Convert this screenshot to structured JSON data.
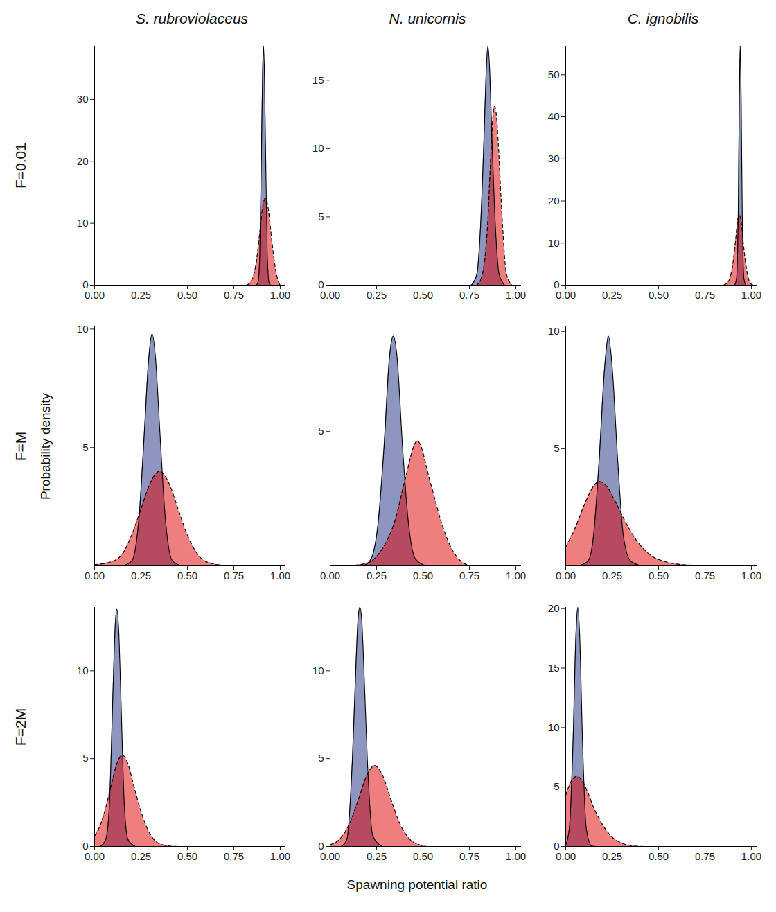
{
  "chart_data": {
    "type": "area",
    "columns": [
      "S. rubroviolaceus",
      "N. unicornis",
      "C. ignobilis"
    ],
    "rows": [
      "F=0.01",
      "F=M",
      "F=2M"
    ],
    "xlabel": "Spawning potential ratio",
    "ylabel": "Probability density",
    "xlim": [
      0,
      1.03
    ],
    "xticks": [
      {
        "value": 0,
        "label": "0.00"
      },
      {
        "value": 0.25,
        "label": "0.25"
      },
      {
        "value": 0.5,
        "label": "0.50"
      },
      {
        "value": 0.75,
        "label": "0.75"
      },
      {
        "value": 1,
        "label": "1.00"
      }
    ],
    "panels": [
      {
        "ylim": [
          0,
          38.6
        ],
        "yticks": [
          0,
          10,
          20,
          30
        ],
        "series": [
          {
            "color": "#1a2e80",
            "line_style": "solid",
            "x": [
              0.87,
              0.88,
              0.89,
              0.9,
              0.905,
              0.91,
              0.915,
              0.92,
              0.93,
              0.94,
              0.95
            ],
            "values": [
              0,
              0.4,
              5,
              24,
              34,
              38.6,
              34,
              24,
              5,
              0.4,
              0
            ]
          },
          {
            "color": "#e00000",
            "line_style": "dashed",
            "x": [
              0.82,
              0.85,
              0.87,
              0.89,
              0.905,
              0.92,
              0.935,
              0.95,
              0.97,
              0.99,
              1.0
            ],
            "values": [
              0,
              1,
              3.5,
              8.5,
              12.5,
              14,
              12.5,
              8.5,
              3.5,
              0.6,
              0
            ]
          }
        ]
      },
      {
        "ylim": [
          0,
          17.5
        ],
        "yticks": [
          0,
          5,
          10,
          15
        ],
        "series": [
          {
            "color": "#1a2e80",
            "line_style": "solid",
            "x": [
              0.76,
              0.79,
              0.81,
              0.83,
              0.84,
              0.85,
              0.86,
              0.87,
              0.89,
              0.91,
              0.94
            ],
            "values": [
              0,
              0.8,
              4.3,
              11.3,
              15.5,
              17.5,
              15.5,
              11.3,
              4.3,
              0.8,
              0
            ]
          },
          {
            "color": "#e00000",
            "line_style": "dashed",
            "x": [
              0.79,
              0.82,
              0.85,
              0.865,
              0.875,
              0.885,
              0.895,
              0.905,
              0.92,
              0.95,
              0.98
            ],
            "values": [
              0,
              0.8,
              4.9,
              9.4,
              12,
              13.1,
              12.5,
              10.5,
              6.5,
              0.8,
              0
            ]
          }
        ]
      },
      {
        "ylim": [
          0,
          56.8
        ],
        "yticks": [
          0,
          10,
          20,
          30,
          40,
          50
        ],
        "series": [
          {
            "color": "#1a2e80",
            "line_style": "solid",
            "x": [
              0.91,
              0.92,
              0.93,
              0.935,
              0.94,
              0.945,
              0.95,
              0.96,
              0.97
            ],
            "values": [
              0,
              1.5,
              20,
              44,
              56.8,
              44,
              20,
              1.5,
              0
            ]
          },
          {
            "color": "#e00000",
            "line_style": "dashed",
            "x": [
              0.85,
              0.88,
              0.9,
              0.915,
              0.925,
              0.935,
              0.945,
              0.955,
              0.97,
              0.99,
              1.01
            ],
            "values": [
              0,
              1.2,
              5,
              10.6,
              15,
              16.7,
              15,
              10.6,
              5,
              0.8,
              0
            ]
          }
        ]
      },
      {
        "ylim": [
          0,
          10.1
        ],
        "yticks": [
          5,
          10
        ],
        "series": [
          {
            "color": "#1a2e80",
            "line_style": "solid",
            "x": [
              0.15,
              0.2,
              0.24,
              0.27,
              0.29,
              0.31,
              0.33,
              0.35,
              0.38,
              0.42,
              0.47
            ],
            "values": [
              0,
              0.2,
              2.1,
              5.9,
              8.6,
              9.8,
              8.6,
              5.9,
              2.1,
              0.2,
              0
            ]
          },
          {
            "color": "#e00000",
            "line_style": "dashed",
            "x": [
              0,
              0.1,
              0.15,
              0.2,
              0.25,
              0.3,
              0.35,
              0.4,
              0.45,
              0.5,
              0.55,
              0.6,
              0.7,
              0.8
            ],
            "values": [
              0.05,
              0.2,
              0.5,
              1.3,
              2.4,
              3.5,
              4.0,
              3.5,
              2.4,
              1.3,
              0.55,
              0.18,
              0.02,
              0
            ]
          }
        ]
      },
      {
        "ylim": [
          0,
          8.9
        ],
        "yticks": [
          5
        ],
        "series": [
          {
            "color": "#1a2e80",
            "line_style": "solid",
            "x": [
              0.18,
              0.22,
              0.26,
              0.29,
              0.32,
              0.34,
              0.36,
              0.39,
              0.42,
              0.46,
              0.52
            ],
            "values": [
              0,
              0.25,
              1.7,
              4.4,
              7.8,
              8.55,
              7.8,
              4.4,
              1.7,
              0.25,
              0
            ]
          },
          {
            "color": "#e00000",
            "line_style": "dashed",
            "x": [
              0.1,
              0.2,
              0.25,
              0.3,
              0.35,
              0.4,
              0.47,
              0.54,
              0.6,
              0.65,
              0.7,
              0.76
            ],
            "values": [
              0,
              0.1,
              0.35,
              0.86,
              1.7,
              3.1,
              4.65,
              3.1,
              1.6,
              0.7,
              0.2,
              0
            ]
          }
        ]
      },
      {
        "ylim": [
          0,
          10.2
        ],
        "yticks": [
          5,
          10
        ],
        "series": [
          {
            "color": "#1a2e80",
            "line_style": "solid",
            "x": [
              0.07,
              0.12,
              0.15,
              0.18,
              0.21,
              0.23,
              0.25,
              0.28,
              0.31,
              0.35,
              0.41
            ],
            "values": [
              0,
              0.2,
              1.3,
              4.5,
              8.5,
              9.8,
              8.5,
              4.5,
              1.3,
              0.2,
              0
            ]
          },
          {
            "color": "#e00000",
            "line_style": "dashed",
            "x": [
              0,
              0.05,
              0.1,
              0.15,
              0.18,
              0.22,
              0.27,
              0.32,
              0.38,
              0.45,
              0.55,
              0.65,
              0.8,
              1.0
            ],
            "values": [
              0.8,
              1.6,
              2.6,
              3.4,
              3.6,
              3.4,
              2.7,
              1.9,
              1.1,
              0.5,
              0.15,
              0.04,
              0.01,
              0
            ]
          }
        ]
      },
      {
        "ylim": [
          0,
          13.6
        ],
        "yticks": [
          0,
          5,
          10
        ],
        "series": [
          {
            "color": "#1a2e80",
            "line_style": "solid",
            "x": [
              0.03,
              0.06,
              0.08,
              0.1,
              0.11,
              0.12,
              0.13,
              0.14,
              0.16,
              0.18,
              0.22
            ],
            "values": [
              0,
              0.4,
              2.4,
              9.1,
              12.3,
              13.5,
              12.3,
              9.1,
              2.4,
              0.4,
              0
            ]
          },
          {
            "color": "#e00000",
            "line_style": "dashed",
            "x": [
              0,
              0.03,
              0.06,
              0.09,
              0.12,
              0.15,
              0.18,
              0.21,
              0.25,
              0.3,
              0.35,
              0.4,
              0.45
            ],
            "values": [
              0.6,
              1.2,
              2.2,
              3.5,
              4.7,
              5.2,
              4.7,
              3.5,
              2,
              0.7,
              0.15,
              0.03,
              0
            ]
          }
        ]
      },
      {
        "ylim": [
          0,
          13.6
        ],
        "yticks": [
          0,
          5,
          10
        ],
        "series": [
          {
            "color": "#1a2e80",
            "line_style": "solid",
            "x": [
              0.06,
              0.09,
              0.12,
              0.14,
              0.15,
              0.16,
              0.17,
              0.18,
              0.2,
              0.23,
              0.28
            ],
            "values": [
              0,
              0.4,
              5,
              10.6,
              12.9,
              13.6,
              12.9,
              10.6,
              5,
              0.6,
              0
            ]
          },
          {
            "color": "#e00000",
            "line_style": "dashed",
            "x": [
              0,
              0.05,
              0.1,
              0.15,
              0.2,
              0.24,
              0.28,
              0.33,
              0.38,
              0.43,
              0.48,
              0.52
            ],
            "values": [
              0.1,
              0.4,
              1.2,
              2.6,
              4.1,
              4.6,
              4.1,
              2.6,
              1.2,
              0.4,
              0.1,
              0
            ]
          }
        ]
      },
      {
        "ylim": [
          0,
          20.1
        ],
        "yticks": [
          0,
          5,
          10,
          15,
          20
        ],
        "series": [
          {
            "color": "#1a2e80",
            "line_style": "solid",
            "x": [
              0,
              0.02,
              0.04,
              0.055,
              0.065,
              0.075,
              0.09,
              0.11,
              0.14,
              0.16
            ],
            "values": [
              0.1,
              1.6,
              9.1,
              17.8,
              20.1,
              17.8,
              9.1,
              1.6,
              0.04,
              0
            ]
          },
          {
            "color": "#e00000",
            "line_style": "dashed",
            "x": [
              0,
              0.03,
              0.06,
              0.09,
              0.12,
              0.15,
              0.2,
              0.25,
              0.3,
              0.35,
              0.42
            ],
            "values": [
              4.3,
              5.5,
              5.9,
              5.5,
              4.5,
              3.3,
              1.8,
              0.8,
              0.3,
              0.08,
              0
            ]
          }
        ]
      }
    ]
  }
}
